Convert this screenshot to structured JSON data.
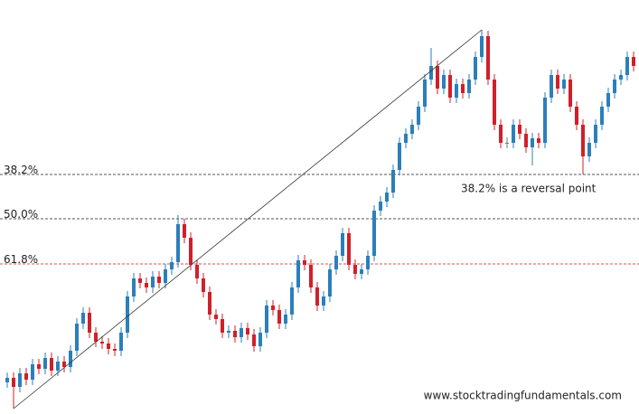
{
  "chart_data": {
    "type": "candlestick",
    "up_color": "#2b7fba",
    "down_color": "#d0202a",
    "ylim": [
      0,
      458
    ],
    "open": [
      35,
      40,
      30,
      45,
      38,
      55,
      50,
      62,
      48,
      58,
      52,
      70,
      100,
      112,
      90,
      80,
      78,
      72,
      70,
      90,
      130,
      150,
      145,
      140,
      152,
      145,
      160,
      168,
      210,
      195,
      165,
      150,
      135,
      110,
      105,
      90,
      92,
      85,
      95,
      88,
      75,
      90,
      120,
      115,
      100,
      110,
      140,
      170,
      165,
      140,
      120,
      130,
      160,
      175,
      200,
      165,
      155,
      160,
      175,
      225,
      235,
      245,
      270,
      300,
      310,
      320,
      340,
      370,
      385,
      360,
      375,
      350,
      365,
      355,
      370,
      395,
      418,
      370,
      320,
      300,
      300,
      320,
      310,
      295,
      305,
      300,
      350,
      375,
      360,
      370,
      340,
      320,
      285,
      300,
      320,
      340,
      355,
      370,
      375,
      395
    ],
    "high": [
      46,
      46,
      51,
      51,
      61,
      61,
      68,
      68,
      64,
      64,
      76,
      106,
      118,
      118,
      96,
      86,
      84,
      78,
      96,
      136,
      156,
      156,
      151,
      158,
      158,
      166,
      174,
      220,
      216,
      201,
      171,
      156,
      141,
      116,
      111,
      98,
      98,
      101,
      101,
      94,
      96,
      126,
      126,
      121,
      116,
      146,
      176,
      176,
      171,
      146,
      136,
      166,
      181,
      206,
      206,
      171,
      166,
      181,
      231,
      241,
      251,
      276,
      306,
      316,
      326,
      346,
      376,
      405,
      391,
      381,
      381,
      371,
      371,
      376,
      401,
      425,
      424,
      376,
      326,
      306,
      326,
      326,
      316,
      311,
      311,
      356,
      381,
      381,
      376,
      376,
      346,
      326,
      306,
      326,
      346,
      361,
      376,
      381,
      401,
      401
    ],
    "low": [
      29,
      6,
      24,
      32,
      32,
      44,
      44,
      42,
      42,
      46,
      46,
      64,
      94,
      84,
      74,
      72,
      66,
      64,
      64,
      84,
      124,
      139,
      134,
      134,
      139,
      139,
      154,
      162,
      189,
      159,
      144,
      129,
      104,
      99,
      84,
      84,
      79,
      79,
      82,
      69,
      69,
      84,
      109,
      94,
      94,
      104,
      134,
      159,
      134,
      114,
      114,
      124,
      154,
      169,
      159,
      149,
      149,
      154,
      169,
      219,
      229,
      239,
      264,
      294,
      304,
      314,
      334,
      364,
      354,
      354,
      344,
      344,
      349,
      349,
      364,
      389,
      364,
      314,
      294,
      294,
      294,
      304,
      289,
      275,
      294,
      294,
      344,
      354,
      354,
      334,
      314,
      265,
      279,
      294,
      314,
      334,
      349,
      364,
      369,
      379
    ],
    "close": [
      40,
      30,
      45,
      38,
      55,
      50,
      62,
      48,
      58,
      52,
      70,
      100,
      112,
      90,
      80,
      78,
      72,
      70,
      90,
      130,
      150,
      145,
      140,
      152,
      145,
      160,
      168,
      210,
      195,
      165,
      150,
      135,
      110,
      105,
      90,
      92,
      85,
      95,
      88,
      75,
      90,
      120,
      115,
      100,
      110,
      140,
      170,
      165,
      140,
      120,
      130,
      160,
      175,
      200,
      165,
      155,
      160,
      175,
      225,
      235,
      245,
      270,
      300,
      310,
      320,
      340,
      370,
      385,
      360,
      375,
      350,
      365,
      355,
      370,
      395,
      418,
      370,
      320,
      300,
      300,
      320,
      310,
      295,
      305,
      300,
      350,
      375,
      360,
      370,
      340,
      320,
      285,
      300,
      320,
      340,
      355,
      370,
      375,
      395,
      385
    ],
    "trendline": {
      "x": [
        1,
        75
      ],
      "y": [
        6,
        425
      ]
    },
    "levels": [
      {
        "label": "38.2%",
        "value": 265,
        "color": "#555555"
      },
      {
        "label": "50.0%",
        "value": 216,
        "color": "#555555"
      },
      {
        "label": "61.8%",
        "value": 166,
        "color": "#d9534f"
      }
    ],
    "annotation": "38.2% is a reversal point",
    "watermark": "www.stocktradingfundamentals.com"
  }
}
